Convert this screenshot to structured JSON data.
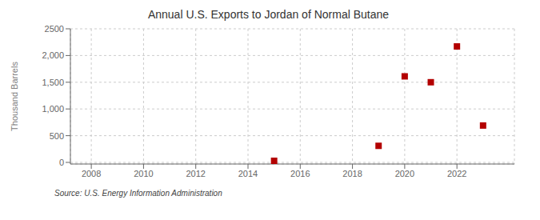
{
  "chart_data": {
    "type": "scatter",
    "title": "Annual U.S. Exports to Jordan of Normal Butane",
    "ylabel": "Thousand Barrels",
    "annotation": "Source: U.S. Energy Information Administration",
    "x": [
      2015,
      2019,
      2020,
      2021,
      2022,
      2023
    ],
    "values": [
      30,
      310,
      1610,
      1500,
      2170,
      690
    ],
    "color": "#b30000",
    "marker": "square",
    "xlim": [
      2007.2,
      2024.2
    ],
    "xticks": [
      2008,
      2010,
      2012,
      2014,
      2016,
      2018,
      2020,
      2022
    ],
    "ylim": [
      -30,
      2500
    ],
    "yticks": [
      0,
      500,
      {
        "value": 1000,
        "label": "1,000"
      },
      {
        "value": 1500,
        "label": "1,500"
      },
      {
        "value": 2000,
        "label": "2,000"
      },
      2500
    ],
    "grid": true
  }
}
